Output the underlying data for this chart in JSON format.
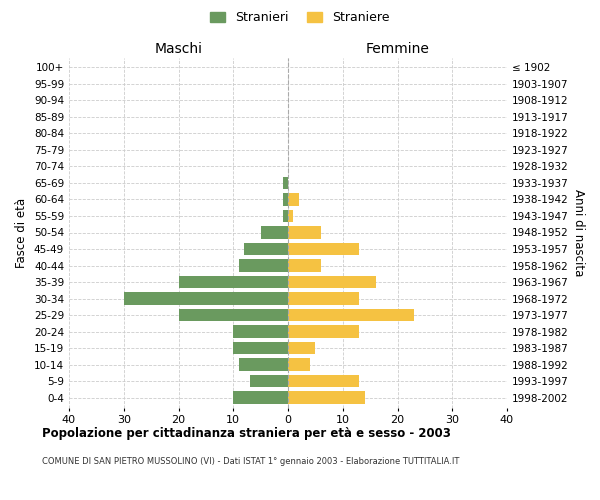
{
  "age_groups": [
    "100+",
    "95-99",
    "90-94",
    "85-89",
    "80-84",
    "75-79",
    "70-74",
    "65-69",
    "60-64",
    "55-59",
    "50-54",
    "45-49",
    "40-44",
    "35-39",
    "30-34",
    "25-29",
    "20-24",
    "15-19",
    "10-14",
    "5-9",
    "0-4"
  ],
  "birth_years": [
    "≤ 1902",
    "1903-1907",
    "1908-1912",
    "1913-1917",
    "1918-1922",
    "1923-1927",
    "1928-1932",
    "1933-1937",
    "1938-1942",
    "1943-1947",
    "1948-1952",
    "1953-1957",
    "1958-1962",
    "1963-1967",
    "1968-1972",
    "1973-1977",
    "1978-1982",
    "1983-1987",
    "1988-1992",
    "1993-1997",
    "1998-2002"
  ],
  "maschi": [
    0,
    0,
    0,
    0,
    0,
    0,
    0,
    1,
    1,
    1,
    5,
    8,
    9,
    20,
    30,
    20,
    10,
    10,
    9,
    7,
    10
  ],
  "femmine": [
    0,
    0,
    0,
    0,
    0,
    0,
    0,
    0,
    2,
    1,
    6,
    13,
    6,
    16,
    13,
    23,
    13,
    5,
    4,
    13,
    14
  ],
  "maschi_color": "#6a9a5f",
  "femmine_color": "#f5c242",
  "title": "Popolazione per cittadinanza straniera per età e sesso - 2003",
  "subtitle": "COMUNE DI SAN PIETRO MUSSOLINO (VI) - Dati ISTAT 1° gennaio 2003 - Elaborazione TUTTITALIA.IT",
  "xlabel_left": "Maschi",
  "xlabel_right": "Femmine",
  "ylabel_left": "Fasce di età",
  "ylabel_right": "Anni di nascita",
  "legend_stranieri": "Stranieri",
  "legend_straniere": "Straniere",
  "xlim": 40,
  "background_color": "#ffffff",
  "grid_color": "#cccccc"
}
